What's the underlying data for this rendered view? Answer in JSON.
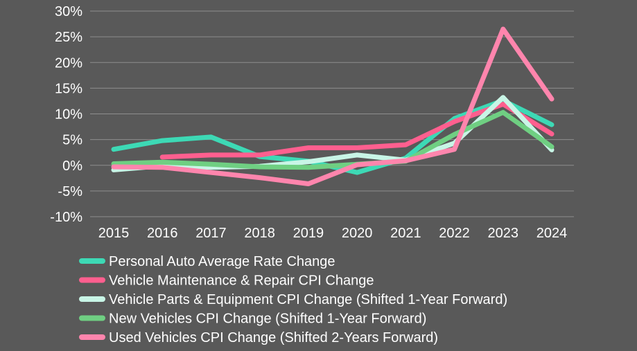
{
  "chart_data": {
    "type": "line",
    "title": "",
    "xlabel": "",
    "ylabel": "",
    "categories": [
      "2015",
      "2016",
      "2017",
      "2018",
      "2019",
      "2020",
      "2021",
      "2022",
      "2023",
      "2024"
    ],
    "y_ticks": [
      "30%",
      "25%",
      "20%",
      "15%",
      "10%",
      "5%",
      "0%",
      "-5%",
      "-10%"
    ],
    "ylim": [
      -10,
      30
    ],
    "grid": true,
    "legend_position": "bottom",
    "series": [
      {
        "name": "Personal Auto Average Rate Change",
        "color": "#3dd9b5",
        "values": [
          3.1,
          4.8,
          5.5,
          1.7,
          0.8,
          -1.4,
          1.4,
          9.1,
          12.6,
          7.9
        ]
      },
      {
        "name": "Vehicle Maintenance & Repair CPI Change",
        "color": "#ff5f8f",
        "values": [
          null,
          1.6,
          2.0,
          2.0,
          3.4,
          3.4,
          4.0,
          8.5,
          11.9,
          6.1
        ]
      },
      {
        "name": "Vehicle Parts & Equipment CPI Change (Shifted 1-Year Forward)",
        "color": "#c8f5e6",
        "values": [
          -0.9,
          -0.1,
          -0.4,
          -0.2,
          0.7,
          2.0,
          1.0,
          4.3,
          13.2,
          3.0
        ]
      },
      {
        "name": "New Vehicles CPI Change (Shifted 1-Year Forward)",
        "color": "#6fcf82",
        "values": [
          0.3,
          0.6,
          0.2,
          -0.3,
          -0.4,
          0.2,
          0.8,
          6.0,
          10.3,
          3.6
        ]
      },
      {
        "name": "Used Vehicles CPI Change (Shifted 2-Years Forward)",
        "color": "#ff85ad",
        "values": [
          -0.3,
          -0.4,
          -1.4,
          -2.4,
          -3.6,
          0.1,
          0.9,
          3.1,
          26.5,
          12.9
        ]
      }
    ]
  }
}
